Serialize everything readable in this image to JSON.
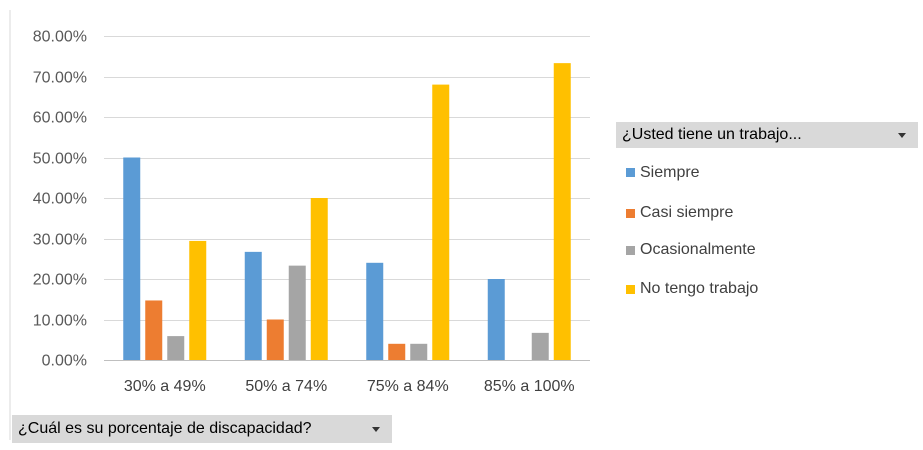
{
  "chart_data": {
    "type": "bar",
    "categories": [
      "30% a 49%",
      "50% a 74%",
      "75% a 84%",
      "85% a 100%"
    ],
    "series": [
      {
        "name": "Siempre",
        "values": [
          50.0,
          26.7,
          24.0,
          20.0
        ],
        "color": "#5b9bd5"
      },
      {
        "name": "Casi siempre",
        "values": [
          14.7,
          10.0,
          4.0,
          0.0
        ],
        "color": "#ed7d31"
      },
      {
        "name": "Ocasionalmente",
        "values": [
          5.9,
          23.3,
          4.0,
          6.7
        ],
        "color": "#a5a5a5"
      },
      {
        "name": "No tengo trabajo",
        "values": [
          29.4,
          40.0,
          68.0,
          73.3
        ],
        "color": "#ffc000"
      }
    ],
    "ylim": [
      0,
      80
    ],
    "yticks": [
      0,
      10,
      20,
      30,
      40,
      50,
      60,
      70,
      80
    ],
    "ytick_labels": [
      "0.00%",
      "10.00%",
      "20.00%",
      "30.00%",
      "40.00%",
      "50.00%",
      "60.00%",
      "70.00%",
      "80.00%"
    ],
    "grid": true,
    "legend_position": "right"
  },
  "legend_filter": {
    "label": "¿Usted tiene un trabajo..."
  },
  "axis_filter": {
    "label": "¿Cuál es su porcentaje de discapacidad?"
  }
}
